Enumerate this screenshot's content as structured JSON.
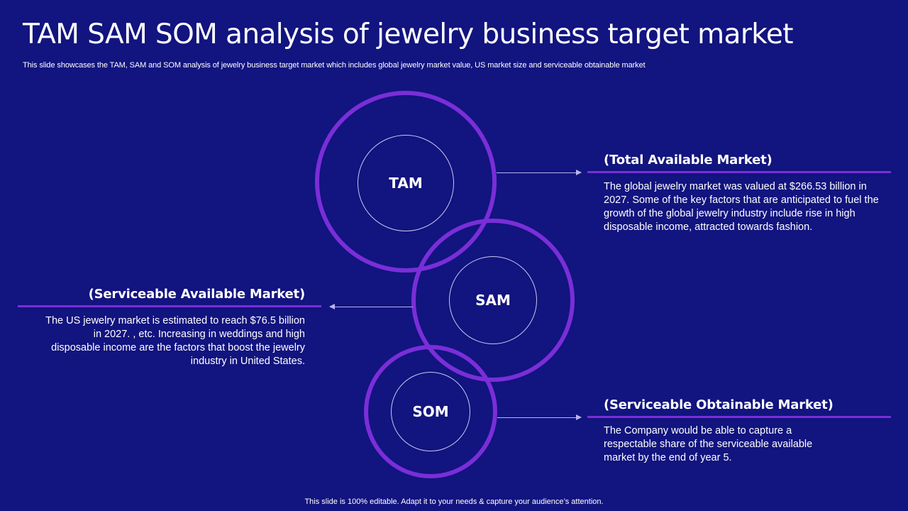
{
  "slide": {
    "title": "TAM SAM SOM analysis of jewelry business target market",
    "subtitle": "This slide showcases the TAM,  SAM  and SOM  analysis of jewelry business target market which includes global jewelry market value, US market size and serviceable obtainable market",
    "footer": "This slide is 100% editable. Adapt it to your needs & capture your audience’s attention."
  },
  "circles": {
    "tam": "TAM",
    "sam": "SAM",
    "som": "SOM"
  },
  "sections": {
    "tam": {
      "heading": "(Total Available Market)",
      "text": "The global jewelry market was valued at $266.53 billion in 2027. Some of the key factors that are anticipated to fuel the growth of the global jewelry industry  include rise in high disposable income, attracted towards fashion."
    },
    "sam": {
      "heading": "(Serviceable Available Market)",
      "text": "The US jewelry market is estimated to reach $76.5 billion in 2027. , etc. Increasing  in weddings and high disposable income are the factors that  boost the jewelry industry  in United States."
    },
    "som": {
      "heading": "(Serviceable Obtainable Market)",
      "text": "The Company would be able to capture a respectable share of the serviceable available market by the end of year 5."
    }
  },
  "colors": {
    "background": "#12147f",
    "accent": "#7a2ed8",
    "text": "#ffffff"
  }
}
